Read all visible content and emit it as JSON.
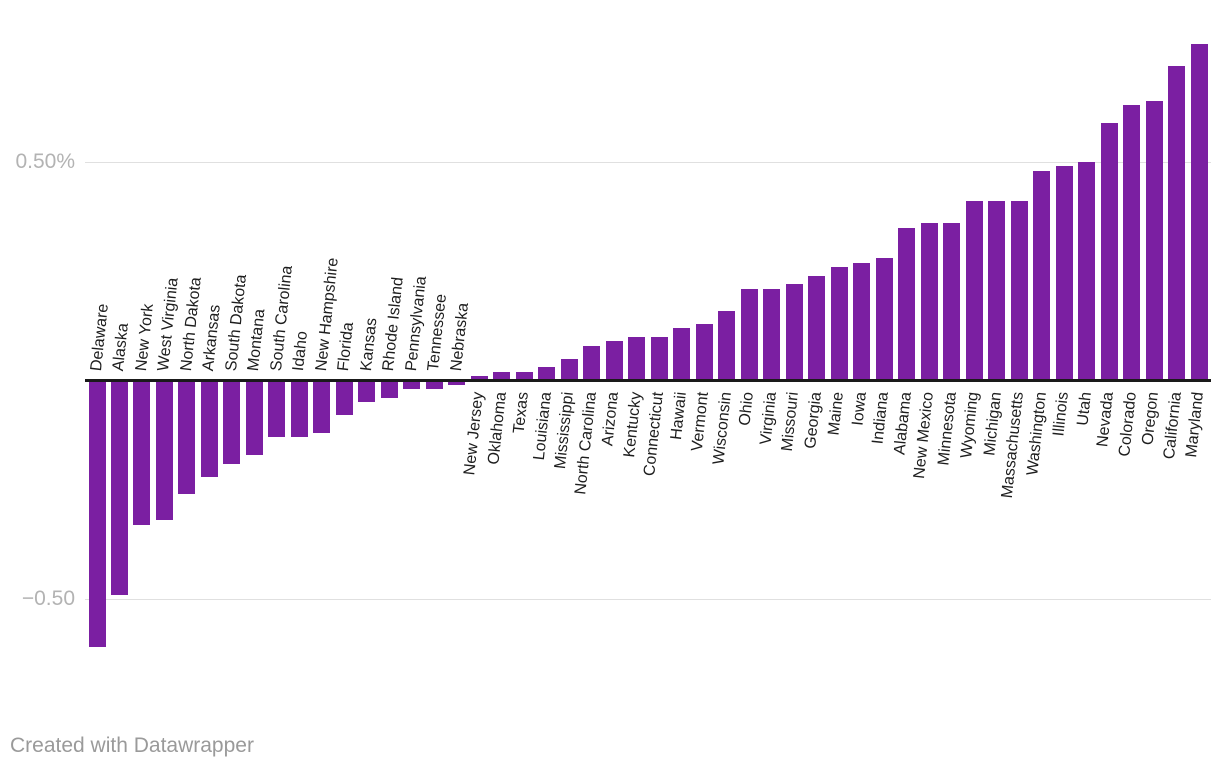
{
  "chart_data": {
    "type": "bar",
    "title": "",
    "unit": "%",
    "orientation": "vertical",
    "baseline": 0,
    "grid": true,
    "legend_position": "none",
    "ylim": [
      -0.75,
      0.85
    ],
    "ytick_values": [
      0.5,
      -0.5
    ],
    "bar_color": "#7b1fa2",
    "categories": [
      "Delaware",
      "Alaska",
      "New York",
      "West Virginia",
      "North Dakota",
      "Arkansas",
      "South Dakota",
      "Montana",
      "South Carolina",
      "Idaho",
      "New Hampshire",
      "Florida",
      "Kansas",
      "Rhode Island",
      "Pennsylvania",
      "Tennessee",
      "Nebraska",
      "New Jersey",
      "Oklahoma",
      "Texas",
      "Louisiana",
      "Mississippi",
      "North Carolina",
      "Arizona",
      "Kentucky",
      "Connecticut",
      "Hawaii",
      "Vermont",
      "Wisconsin",
      "Ohio",
      "Virginia",
      "Missouri",
      "Georgia",
      "Maine",
      "Iowa",
      "Indiana",
      "Alabama",
      "New Mexico",
      "Minnesota",
      "Wyoming",
      "Michigan",
      "Massachusetts",
      "Washington",
      "Illinois",
      "Utah",
      "Nevada",
      "Colorado",
      "Oregon",
      "California",
      "Maryland"
    ],
    "values": [
      -0.61,
      -0.49,
      -0.33,
      -0.32,
      -0.26,
      -0.22,
      -0.19,
      -0.17,
      -0.13,
      -0.13,
      -0.12,
      -0.08,
      -0.05,
      -0.04,
      -0.02,
      -0.02,
      -0.01,
      0.01,
      0.02,
      0.02,
      0.03,
      0.05,
      0.08,
      0.09,
      0.1,
      0.1,
      0.12,
      0.13,
      0.16,
      0.21,
      0.21,
      0.22,
      0.24,
      0.26,
      0.27,
      0.28,
      0.35,
      0.36,
      0.36,
      0.41,
      0.41,
      0.41,
      0.48,
      0.49,
      0.5,
      0.59,
      0.63,
      0.64,
      0.72,
      0.77
    ]
  },
  "y_axis": {
    "top_tick_label": "0.50%",
    "bottom_tick_label": "−0.50"
  },
  "footer": {
    "credit": "Created with Datawrapper"
  },
  "colors": {
    "bar": "#7b1fa2",
    "gridline": "#e0e0e0",
    "baseline": "#1a1a1a",
    "category_label": "#1d1d1d",
    "tick_label": "#b3b3b3",
    "footer": "#9a9a9a",
    "background": "#ffffff"
  }
}
